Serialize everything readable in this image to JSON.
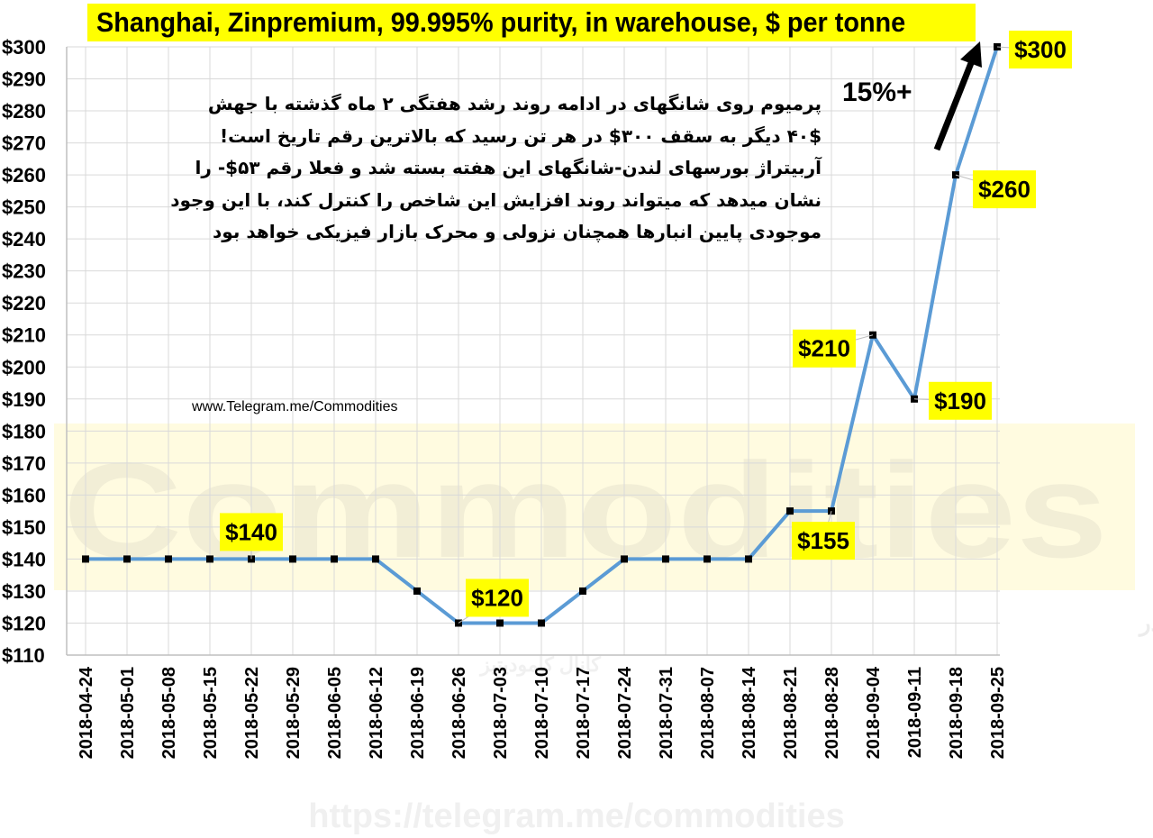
{
  "chart_data": {
    "type": "line",
    "title": "Shanghai, Zinpremium, 99.995% purity, in warehouse, $ per tonne",
    "xlabel": "",
    "ylabel": "",
    "ylim": [
      110,
      300
    ],
    "y_ticks": [
      "$300",
      "$290",
      "$280",
      "$270",
      "$260",
      "$250",
      "$240",
      "$230",
      "$220",
      "$210",
      "$200",
      "$190",
      "$180",
      "$170",
      "$160",
      "$150",
      "$140",
      "$130",
      "$120",
      "$110"
    ],
    "categories": [
      "2018-04-24",
      "2018-05-01",
      "2018-05-08",
      "2018-05-15",
      "2018-05-22",
      "2018-05-29",
      "2018-06-05",
      "2018-06-12",
      "2018-06-19",
      "2018-06-26",
      "2018-07-03",
      "2018-07-10",
      "2018-07-17",
      "2018-07-24",
      "2018-07-31",
      "2018-08-07",
      "2018-08-14",
      "2018-08-21",
      "2018-08-28",
      "2018-09-04",
      "2018-09-11",
      "2018-09-18",
      "2018-09-25"
    ],
    "series": [
      {
        "values": [
          140,
          140,
          140,
          140,
          140,
          140,
          140,
          140,
          130,
          120,
          120,
          120,
          130,
          140,
          140,
          140,
          140,
          155,
          155,
          210,
          190,
          260,
          300
        ]
      }
    ],
    "data_labels": [
      {
        "category": "2018-05-22",
        "text": "$140"
      },
      {
        "category": "2018-06-26",
        "text": "$120"
      },
      {
        "category": "2018-08-28",
        "text": "$155"
      },
      {
        "category": "2018-09-04",
        "text": "$210"
      },
      {
        "category": "2018-09-11",
        "text": "$190"
      },
      {
        "category": "2018-09-18",
        "text": "$260"
      },
      {
        "category": "2018-09-25",
        "text": "$300"
      }
    ],
    "grid": true,
    "legend": "none"
  },
  "annotations": {
    "note_lines": [
      "پرمیوم روی شانگهای در ادامه روند رشد هفتگی ۲ ماه گذشته با جهش",
      "۴۰$ دیگر به سقف ۳۰۰$ در هر تن رسید که بالاترین رقم تاریخ است!",
      "آربیتراژ بورسهای لندن-شانگهای این هفته بسته شد و فعلا رقم ۵۳$- را",
      "نشان میدهد که میتواند روند افزایش این شاخص را کنترل کند، با این وجود",
      "موجودی پایین انبارها همچنان نزولی و محرک بازار فیزیکی خواهد بود"
    ],
    "source": "www.Telegram.me/Commodities",
    "growth_label": "15%+"
  },
  "watermark": {
    "big": "Commodities",
    "persian": "گزارشات تحلیلی و آخرین اخبار و تحولات مواد اولیه و انرژی در",
    "persian2": "کانال کامودیتیز",
    "url": "https://telegram.me/commodities"
  },
  "colors": {
    "line": "#5b9bd5",
    "marker": "#000000",
    "label_bg": "#ffff00",
    "grid": "#d9d9d9",
    "watermark_band": "#fffbe0",
    "watermark_text": "#f2eed6"
  }
}
